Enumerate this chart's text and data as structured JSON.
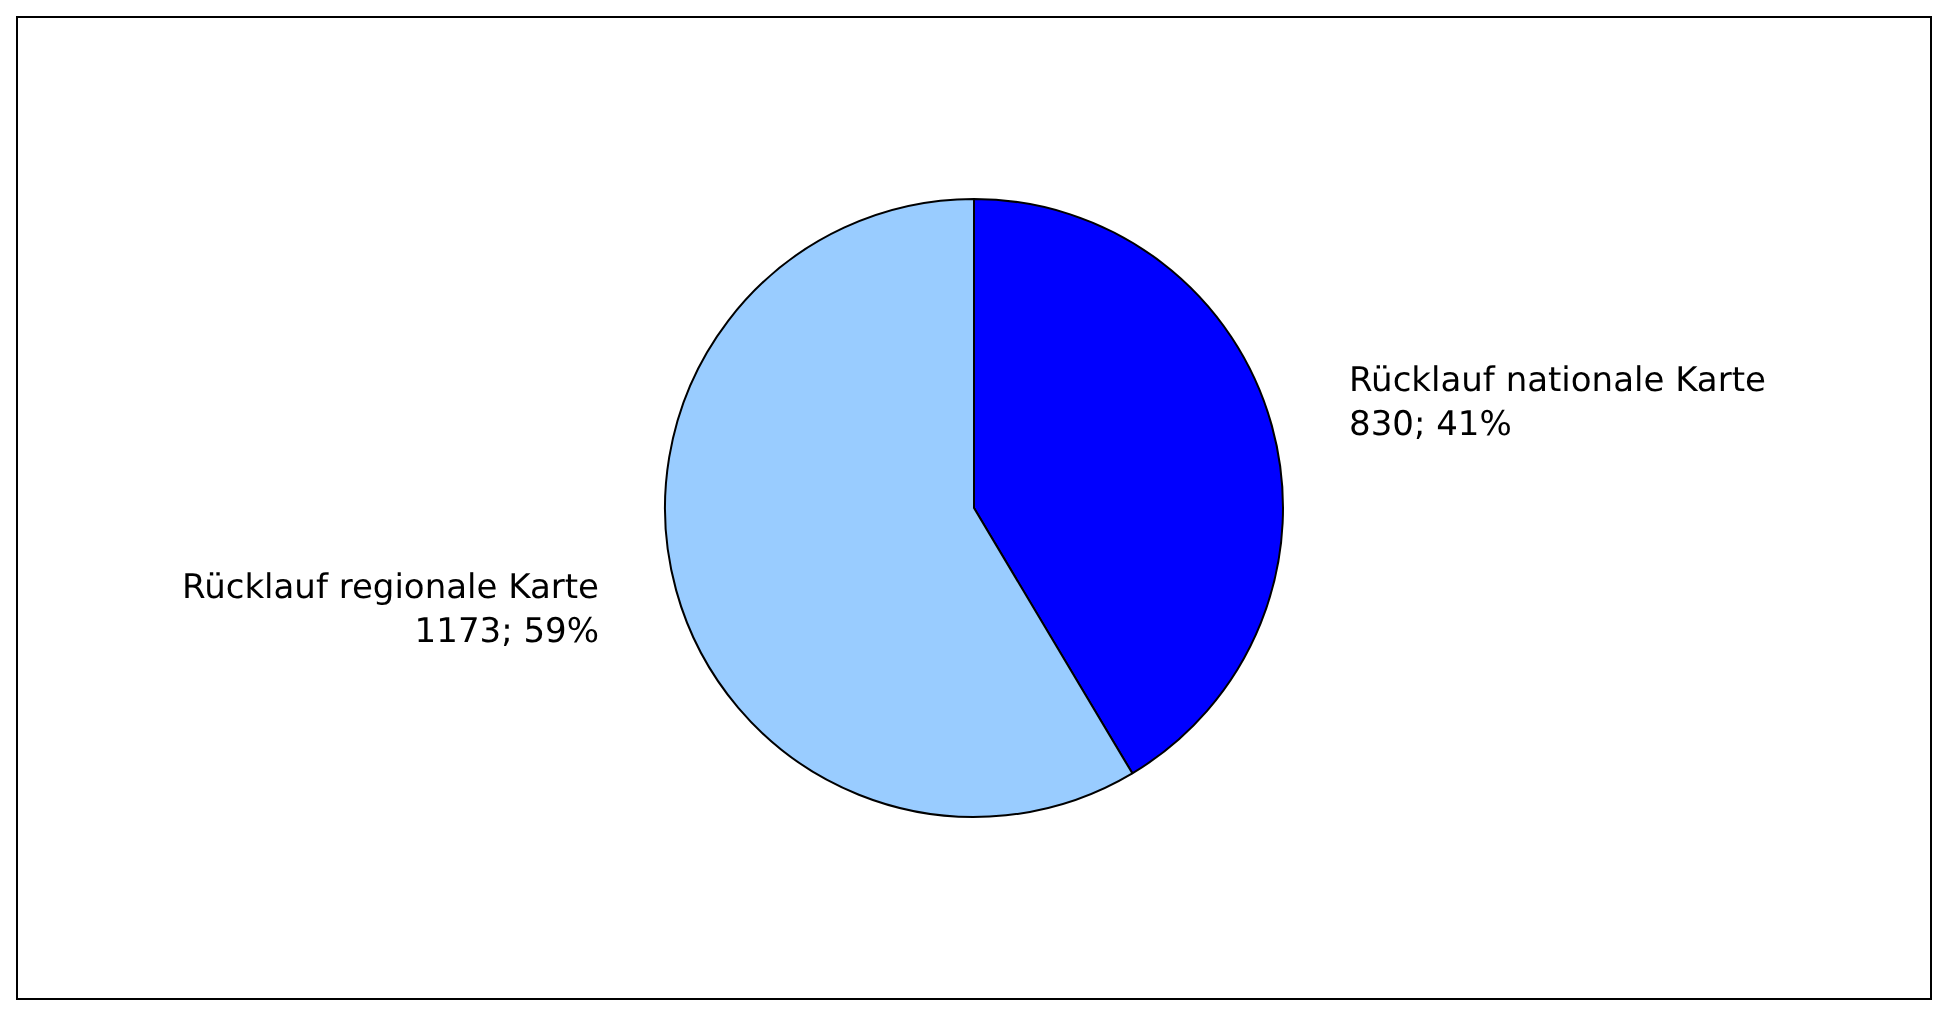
{
  "chart_data": {
    "type": "pie",
    "categories": [
      "Rücklauf nationale Karte",
      "Rücklauf regionale Karte"
    ],
    "values": [
      830,
      1173
    ],
    "colors": [
      "#0000ff",
      "#99ccff"
    ],
    "value_labels": [
      "830; 41%",
      "1173; 59%"
    ],
    "legend": false
  }
}
